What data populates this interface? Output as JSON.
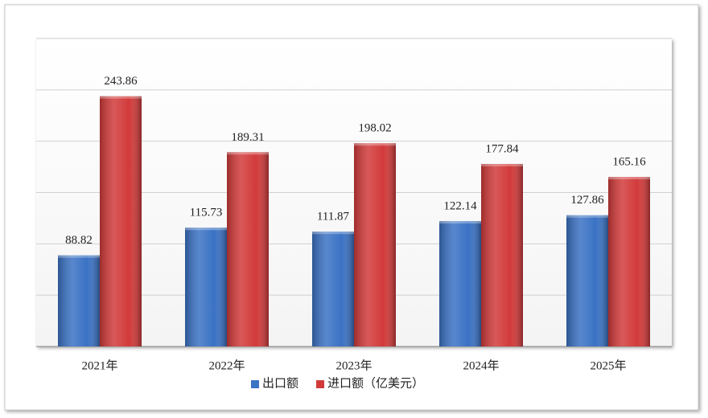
{
  "chart_data": {
    "type": "bar",
    "categories": [
      "2021年",
      "2022年",
      "2023年",
      "2024年",
      "2025年"
    ],
    "series": [
      {
        "name": "出口额",
        "color": "#3a72c4",
        "values": [
          88.82,
          115.73,
          111.87,
          122.14,
          127.86
        ]
      },
      {
        "name": "进口额（亿美元）",
        "color": "#d23a3a",
        "values": [
          243.86,
          189.31,
          198.02,
          177.84,
          165.16
        ]
      }
    ],
    "ylim": [
      0,
      300
    ],
    "yticks": [
      0,
      50,
      100,
      150,
      200,
      250,
      300
    ],
    "grid": true,
    "legend": "bottom"
  }
}
